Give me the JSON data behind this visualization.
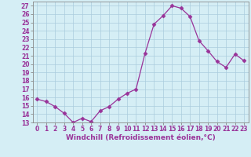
{
  "x": [
    0,
    1,
    2,
    3,
    4,
    5,
    6,
    7,
    8,
    9,
    10,
    11,
    12,
    13,
    14,
    15,
    16,
    17,
    18,
    19,
    20,
    21,
    22,
    23
  ],
  "y": [
    15.8,
    15.5,
    14.9,
    14.1,
    13.0,
    13.5,
    13.1,
    14.4,
    14.9,
    15.8,
    16.5,
    17.0,
    21.3,
    24.8,
    25.8,
    27.0,
    26.7,
    25.7,
    22.8,
    21.6,
    20.3,
    19.6,
    21.2,
    20.4
  ],
  "line_color": "#993399",
  "marker": "D",
  "marker_size": 2.5,
  "bg_color": "#d5eef5",
  "grid_color": "#aaccdd",
  "xlabel": "Windchill (Refroidissement éolien,°C)",
  "xlim": [
    -0.5,
    23.5
  ],
  "ylim": [
    13,
    27.5
  ],
  "yticks": [
    13,
    14,
    15,
    16,
    17,
    18,
    19,
    20,
    21,
    22,
    23,
    24,
    25,
    26,
    27
  ],
  "xticks": [
    0,
    1,
    2,
    3,
    4,
    5,
    6,
    7,
    8,
    9,
    10,
    11,
    12,
    13,
    14,
    15,
    16,
    17,
    18,
    19,
    20,
    21,
    22,
    23
  ],
  "tick_label_fontsize": 5.5,
  "xlabel_fontsize": 6.5,
  "spine_color": "#888888",
  "text_color": "#993399"
}
